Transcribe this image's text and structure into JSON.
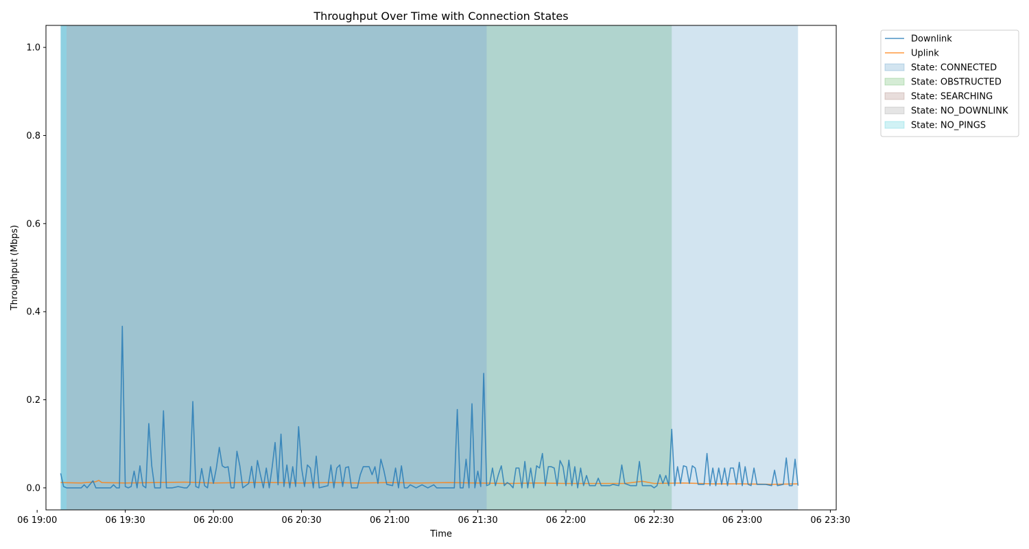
{
  "chart_data": {
    "type": "line",
    "title": "Throughput Over Time with Connection States",
    "xlabel": "Time",
    "ylabel": "Throughput (Mbps)",
    "xlim": [
      "06 19:03",
      "06 23:32"
    ],
    "ylim": [
      -0.05,
      1.05
    ],
    "x_ticks": [
      "06 19:00",
      "06 19:30",
      "06 20:00",
      "06 20:30",
      "06 21:00",
      "06 21:30",
      "06 22:00",
      "06 22:30",
      "06 23:00",
      "06 23:30"
    ],
    "y_ticks": [
      "0.0",
      "0.2",
      "0.4",
      "0.6",
      "0.8",
      "1.0"
    ],
    "grid": false,
    "legend_position": "outside-top-right",
    "state_bands": [
      {
        "state": "NO_PINGS",
        "start": "06 19:08",
        "end": "06 19:10",
        "color": "#17becf"
      },
      {
        "state": "SEARCHING",
        "start": "06 19:10",
        "end": "06 21:33",
        "color": "#8c564b"
      },
      {
        "state": "NO_PINGS",
        "start": "06 19:08",
        "end": "06 21:33",
        "color": "#17becf"
      },
      {
        "state": "OBSTRUCTED",
        "start": "06 21:33",
        "end": "06 22:36",
        "color": "#2ca02c"
      },
      {
        "state": "CONNECTED",
        "start": "06 19:08",
        "end": "06 23:19",
        "color": "#1f77b4"
      }
    ],
    "series": [
      {
        "name": "Downlink",
        "color": "#1f77b4",
        "points": [
          [
            "06 19:08",
            0.033
          ],
          [
            "06 19:09",
            0.003
          ],
          [
            "06 19:10",
            0.0
          ],
          [
            "06 19:15",
            0.0
          ],
          [
            "06 19:16",
            0.007
          ],
          [
            "06 19:17",
            0.0
          ],
          [
            "06 19:18",
            0.008
          ],
          [
            "06 19:19",
            0.016
          ],
          [
            "06 19:20",
            0.0
          ],
          [
            "06 19:25",
            0.0
          ],
          [
            "06 19:26",
            0.007
          ],
          [
            "06 19:27",
            0.0
          ],
          [
            "06 19:28",
            0.0
          ],
          [
            "06 19:29",
            0.367
          ],
          [
            "06 19:30",
            0.003
          ],
          [
            "06 19:31",
            0.0
          ],
          [
            "06 19:32",
            0.003
          ],
          [
            "06 19:33",
            0.038
          ],
          [
            "06 19:34",
            0.0
          ],
          [
            "06 19:35",
            0.05
          ],
          [
            "06 19:36",
            0.005
          ],
          [
            "06 19:37",
            0.0
          ],
          [
            "06 19:38",
            0.146
          ],
          [
            "06 19:39",
            0.05
          ],
          [
            "06 19:40",
            0.0
          ],
          [
            "06 19:42",
            0.0
          ],
          [
            "06 19:43",
            0.175
          ],
          [
            "06 19:44",
            0.0
          ],
          [
            "06 19:46",
            0.0
          ],
          [
            "06 19:48",
            0.003
          ],
          [
            "06 19:50",
            0.0
          ],
          [
            "06 19:51",
            0.0
          ],
          [
            "06 19:52",
            0.008
          ],
          [
            "06 19:53",
            0.196
          ],
          [
            "06 19:54",
            0.003
          ],
          [
            "06 19:55",
            0.0
          ],
          [
            "06 19:56",
            0.044
          ],
          [
            "06 19:57",
            0.005
          ],
          [
            "06 19:58",
            0.0
          ],
          [
            "06 19:59",
            0.048
          ],
          [
            "06 20:00",
            0.01
          ],
          [
            "06 20:01",
            0.045
          ],
          [
            "06 20:02",
            0.092
          ],
          [
            "06 20:03",
            0.05
          ],
          [
            "06 20:04",
            0.046
          ],
          [
            "06 20:05",
            0.048
          ],
          [
            "06 20:06",
            0.0
          ],
          [
            "06 20:07",
            0.0
          ],
          [
            "06 20:08",
            0.083
          ],
          [
            "06 20:09",
            0.05
          ],
          [
            "06 20:10",
            0.0
          ],
          [
            "06 20:12",
            0.01
          ],
          [
            "06 20:13",
            0.049
          ],
          [
            "06 20:14",
            0.0
          ],
          [
            "06 20:15",
            0.062
          ],
          [
            "06 20:16",
            0.03
          ],
          [
            "06 20:17",
            0.0
          ],
          [
            "06 20:18",
            0.045
          ],
          [
            "06 20:19",
            0.0
          ],
          [
            "06 20:20",
            0.048
          ],
          [
            "06 20:21",
            0.103
          ],
          [
            "06 20:22",
            0.007
          ],
          [
            "06 20:23",
            0.122
          ],
          [
            "06 20:24",
            0.003
          ],
          [
            "06 20:25",
            0.052
          ],
          [
            "06 20:26",
            0.0
          ],
          [
            "06 20:27",
            0.048
          ],
          [
            "06 20:28",
            0.003
          ],
          [
            "06 20:29",
            0.139
          ],
          [
            "06 20:30",
            0.045
          ],
          [
            "06 20:31",
            0.003
          ],
          [
            "06 20:32",
            0.052
          ],
          [
            "06 20:33",
            0.045
          ],
          [
            "06 20:34",
            0.0
          ],
          [
            "06 20:35",
            0.072
          ],
          [
            "06 20:36",
            0.0
          ],
          [
            "06 20:39",
            0.005
          ],
          [
            "06 20:40",
            0.052
          ],
          [
            "06 20:41",
            0.0
          ],
          [
            "06 20:42",
            0.045
          ],
          [
            "06 20:43",
            0.052
          ],
          [
            "06 20:44",
            0.003
          ],
          [
            "06 20:45",
            0.046
          ],
          [
            "06 20:46",
            0.048
          ],
          [
            "06 20:47",
            0.0
          ],
          [
            "06 20:49",
            0.0
          ],
          [
            "06 20:50",
            0.03
          ],
          [
            "06 20:51",
            0.048
          ],
          [
            "06 20:53",
            0.048
          ],
          [
            "06 20:54",
            0.03
          ],
          [
            "06 20:55",
            0.048
          ],
          [
            "06 20:56",
            0.01
          ],
          [
            "06 20:57",
            0.065
          ],
          [
            "06 20:58",
            0.04
          ],
          [
            "06 20:59",
            0.008
          ],
          [
            "06 21:01",
            0.005
          ],
          [
            "06 21:02",
            0.045
          ],
          [
            "06 21:03",
            0.0
          ],
          [
            "06 21:04",
            0.05
          ],
          [
            "06 21:05",
            0.0
          ],
          [
            "06 21:06",
            0.0
          ],
          [
            "06 21:07",
            0.007
          ],
          [
            "06 21:09",
            0.0
          ],
          [
            "06 21:11",
            0.007
          ],
          [
            "06 21:13",
            0.0
          ],
          [
            "06 21:15",
            0.007
          ],
          [
            "06 21:16",
            0.0
          ],
          [
            "06 21:17",
            0.0
          ],
          [
            "06 21:19",
            0.0
          ],
          [
            "06 21:20",
            0.0
          ],
          [
            "06 21:21",
            0.0
          ],
          [
            "06 21:22",
            0.0
          ],
          [
            "06 21:23",
            0.178
          ],
          [
            "06 21:24",
            0.0
          ],
          [
            "06 21:25",
            0.0
          ],
          [
            "06 21:26",
            0.065
          ],
          [
            "06 21:27",
            0.0
          ],
          [
            "06 21:28",
            0.191
          ],
          [
            "06 21:29",
            0.0
          ],
          [
            "06 21:30",
            0.038
          ],
          [
            "06 21:31",
            0.003
          ],
          [
            "06 21:32",
            0.26
          ],
          [
            "06 21:33",
            0.005
          ],
          [
            "06 21:34",
            0.008
          ],
          [
            "06 21:35",
            0.045
          ],
          [
            "06 21:36",
            0.005
          ],
          [
            "06 21:37",
            0.03
          ],
          [
            "06 21:38",
            0.05
          ],
          [
            "06 21:39",
            0.005
          ],
          [
            "06 21:40",
            0.012
          ],
          [
            "06 21:41",
            0.008
          ],
          [
            "06 21:42",
            0.0
          ],
          [
            "06 21:43",
            0.045
          ],
          [
            "06 21:44",
            0.045
          ],
          [
            "06 21:45",
            0.0
          ],
          [
            "06 21:46",
            0.06
          ],
          [
            "06 21:47",
            0.0
          ],
          [
            "06 21:48",
            0.045
          ],
          [
            "06 21:49",
            0.0
          ],
          [
            "06 21:50",
            0.05
          ],
          [
            "06 21:51",
            0.045
          ],
          [
            "06 21:52",
            0.078
          ],
          [
            "06 21:53",
            0.005
          ],
          [
            "06 21:54",
            0.048
          ],
          [
            "06 21:55",
            0.048
          ],
          [
            "06 21:56",
            0.045
          ],
          [
            "06 21:57",
            0.005
          ],
          [
            "06 21:58",
            0.062
          ],
          [
            "06 21:59",
            0.048
          ],
          [
            "06 22:00",
            0.005
          ],
          [
            "06 22:01",
            0.063
          ],
          [
            "06 22:02",
            0.005
          ],
          [
            "06 22:03",
            0.048
          ],
          [
            "06 22:04",
            0.0
          ],
          [
            "06 22:05",
            0.045
          ],
          [
            "06 22:06",
            0.005
          ],
          [
            "06 22:07",
            0.028
          ],
          [
            "06 22:08",
            0.005
          ],
          [
            "06 22:10",
            0.005
          ],
          [
            "06 22:11",
            0.022
          ],
          [
            "06 22:12",
            0.005
          ],
          [
            "06 22:15",
            0.005
          ],
          [
            "06 22:16",
            0.008
          ],
          [
            "06 22:18",
            0.005
          ],
          [
            "06 22:19",
            0.052
          ],
          [
            "06 22:20",
            0.01
          ],
          [
            "06 22:22",
            0.005
          ],
          [
            "06 22:24",
            0.005
          ],
          [
            "06 22:25",
            0.06
          ],
          [
            "06 22:26",
            0.005
          ],
          [
            "06 22:29",
            0.005
          ],
          [
            "06 22:30",
            0.0
          ],
          [
            "06 22:31",
            0.005
          ],
          [
            "06 22:32",
            0.03
          ],
          [
            "06 22:33",
            0.01
          ],
          [
            "06 22:34",
            0.028
          ],
          [
            "06 22:35",
            0.005
          ],
          [
            "06 22:36",
            0.133
          ],
          [
            "06 22:37",
            0.005
          ],
          [
            "06 22:38",
            0.048
          ],
          [
            "06 22:39",
            0.01
          ],
          [
            "06 22:40",
            0.05
          ],
          [
            "06 22:41",
            0.048
          ],
          [
            "06 22:42",
            0.01
          ],
          [
            "06 22:43",
            0.05
          ],
          [
            "06 22:44",
            0.045
          ],
          [
            "06 22:45",
            0.008
          ],
          [
            "06 22:47",
            0.008
          ],
          [
            "06 22:48",
            0.078
          ],
          [
            "06 22:49",
            0.005
          ],
          [
            "06 22:50",
            0.045
          ],
          [
            "06 22:51",
            0.005
          ],
          [
            "06 22:52",
            0.045
          ],
          [
            "06 22:53",
            0.008
          ],
          [
            "06 22:54",
            0.045
          ],
          [
            "06 22:55",
            0.005
          ],
          [
            "06 22:56",
            0.045
          ],
          [
            "06 22:57",
            0.045
          ],
          [
            "06 22:58",
            0.008
          ],
          [
            "06 22:59",
            0.058
          ],
          [
            "06 23:00",
            0.005
          ],
          [
            "06 23:01",
            0.048
          ],
          [
            "06 23:02",
            0.008
          ],
          [
            "06 23:03",
            0.005
          ],
          [
            "06 23:04",
            0.045
          ],
          [
            "06 23:05",
            0.008
          ],
          [
            "06 23:08",
            0.008
          ],
          [
            "06 23:10",
            0.005
          ],
          [
            "06 23:11",
            0.04
          ],
          [
            "06 23:12",
            0.005
          ],
          [
            "06 23:14",
            0.008
          ],
          [
            "06 23:15",
            0.068
          ],
          [
            "06 23:16",
            0.005
          ],
          [
            "06 23:17",
            0.005
          ],
          [
            "06 23:18",
            0.065
          ],
          [
            "06 23:19",
            0.005
          ]
        ]
      },
      {
        "name": "Uplink",
        "color": "#ff7f0e",
        "points": [
          [
            "06 19:08",
            0.012
          ],
          [
            "06 19:15",
            0.011
          ],
          [
            "06 19:20",
            0.014
          ],
          [
            "06 19:21",
            0.017
          ],
          [
            "06 19:22",
            0.012
          ],
          [
            "06 19:30",
            0.011
          ],
          [
            "06 19:40",
            0.012
          ],
          [
            "06 19:50",
            0.013
          ],
          [
            "06 20:00",
            0.011
          ],
          [
            "06 20:10",
            0.012
          ],
          [
            "06 20:20",
            0.012
          ],
          [
            "06 20:30",
            0.011
          ],
          [
            "06 20:40",
            0.012
          ],
          [
            "06 20:50",
            0.011
          ],
          [
            "06 21:00",
            0.012
          ],
          [
            "06 21:10",
            0.011
          ],
          [
            "06 21:20",
            0.012
          ],
          [
            "06 21:30",
            0.011
          ],
          [
            "06 21:40",
            0.01
          ],
          [
            "06 21:50",
            0.011
          ],
          [
            "06 22:00",
            0.01
          ],
          [
            "06 22:10",
            0.01
          ],
          [
            "06 22:20",
            0.01
          ],
          [
            "06 22:26",
            0.015
          ],
          [
            "06 22:30",
            0.01
          ],
          [
            "06 22:40",
            0.011
          ],
          [
            "06 22:50",
            0.009
          ],
          [
            "06 23:00",
            0.009
          ],
          [
            "06 23:10",
            0.008
          ],
          [
            "06 23:19",
            0.009
          ]
        ]
      }
    ],
    "legend": [
      {
        "label": "Downlink",
        "kind": "line",
        "color": "#1f77b4"
      },
      {
        "label": "Uplink",
        "kind": "line",
        "color": "#ff7f0e"
      },
      {
        "label": "State: CONNECTED",
        "kind": "patch",
        "color": "#1f77b4"
      },
      {
        "label": "State: OBSTRUCTED",
        "kind": "patch",
        "color": "#2ca02c"
      },
      {
        "label": "State: SEARCHING",
        "kind": "patch",
        "color": "#8c564b"
      },
      {
        "label": "State: NO_DOWNLINK",
        "kind": "patch",
        "color": "#7f7f7f"
      },
      {
        "label": "State: NO_PINGS",
        "kind": "patch",
        "color": "#17becf"
      }
    ]
  }
}
